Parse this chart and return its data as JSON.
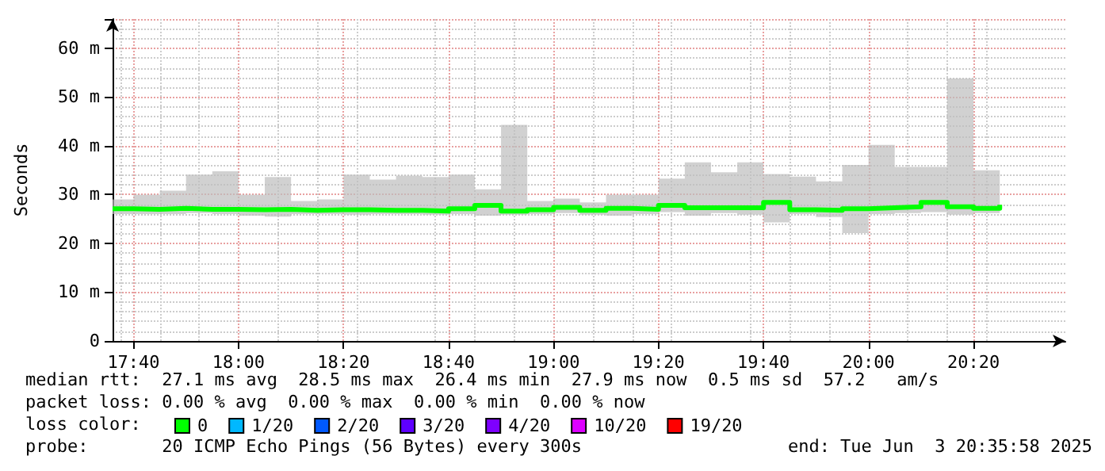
{
  "chart_data": {
    "type": "step",
    "ylabel": "Seconds",
    "x": [
      17.6,
      17.6667,
      17.75,
      17.8333,
      17.9167,
      18,
      18.0833,
      18.1667,
      18.25,
      18.3333,
      18.4167,
      18.5,
      18.5833,
      18.6667,
      18.75,
      18.8333,
      18.9167,
      19,
      19.0833,
      19.1667,
      19.25,
      19.3333,
      19.4167,
      19.5,
      19.5833,
      19.6667,
      19.75,
      19.8333,
      19.9167,
      20,
      20.0833,
      20.1667,
      20.25,
      20.3333,
      20.4167
    ],
    "series": [
      {
        "name": "0",
        "color": "#00ff00",
        "values": [
          27.1,
          27.0,
          27.2,
          27.0,
          27.0,
          26.9,
          27.0,
          26.8,
          26.9,
          26.9,
          26.8,
          26.8,
          26.6,
          27.1,
          27.8,
          26.6,
          26.9,
          27.4,
          26.8,
          27.2,
          27.0,
          27.8,
          27.3,
          27.3,
          27.3,
          28.4,
          26.9,
          26.8,
          27.1,
          27.3,
          27.5,
          28.4,
          27.5,
          27.2,
          27.9
        ],
        "lower": [
          26.0,
          26.0,
          26.0,
          26.2,
          26.0,
          25.7,
          25.5,
          26.0,
          26.0,
          25.9,
          26.0,
          26.0,
          25.9,
          26.0,
          25.7,
          25.9,
          26.0,
          26.2,
          25.9,
          25.7,
          26.0,
          26.4,
          25.7,
          26.2,
          25.9,
          24.3,
          26.0,
          25.4,
          22.1,
          26.0,
          26.2,
          26.4,
          25.9,
          26.2,
          26.0
        ],
        "upper": [
          29.0,
          30.0,
          30.8,
          34.1,
          34.8,
          30.0,
          33.6,
          28.7,
          29.0,
          34.1,
          33.1,
          33.9,
          33.6,
          34.1,
          31.1,
          44.3,
          28.7,
          29.2,
          28.4,
          30.0,
          30.0,
          33.3,
          36.6,
          34.6,
          36.6,
          34.2,
          33.7,
          32.7,
          36.1,
          40.2,
          35.7,
          35.7,
          53.8,
          35.0,
          36.4
        ]
      },
      {
        "name": "1/20",
        "color": "#00b8ff",
        "values": [
          null,
          null,
          null,
          null,
          null,
          null,
          null,
          null,
          null,
          null,
          null,
          null,
          null,
          null,
          null,
          null,
          null,
          null,
          null,
          null,
          null,
          null,
          null,
          null,
          null,
          null,
          null,
          null,
          null,
          null,
          null,
          null,
          null,
          null,
          null
        ]
      },
      {
        "name": "2/20",
        "color": "#0059ff",
        "values": [
          null,
          null,
          null,
          null,
          null,
          null,
          null,
          null,
          null,
          null,
          null,
          null,
          null,
          null,
          null,
          null,
          null,
          null,
          null,
          null,
          null,
          null,
          null,
          null,
          null,
          null,
          null,
          null,
          null,
          null,
          null,
          null,
          null,
          null,
          null
        ]
      },
      {
        "name": "3/20",
        "color": "#5e00ff",
        "values": [
          null,
          null,
          null,
          null,
          null,
          null,
          null,
          null,
          null,
          null,
          null,
          null,
          null,
          null,
          null,
          null,
          null,
          null,
          null,
          null,
          null,
          null,
          null,
          null,
          null,
          null,
          null,
          null,
          null,
          null,
          null,
          null,
          null,
          null,
          null
        ]
      },
      {
        "name": "4/20",
        "color": "#7e00ff",
        "values": [
          null,
          null,
          null,
          null,
          null,
          null,
          null,
          null,
          null,
          null,
          null,
          null,
          null,
          null,
          null,
          null,
          null,
          null,
          null,
          null,
          null,
          null,
          null,
          null,
          null,
          null,
          null,
          null,
          null,
          null,
          null,
          null,
          null,
          null,
          null
        ]
      },
      {
        "name": "10/20",
        "color": "#dd00ff",
        "values": [
          null,
          null,
          null,
          null,
          null,
          null,
          null,
          null,
          null,
          null,
          null,
          null,
          null,
          null,
          null,
          null,
          null,
          null,
          null,
          null,
          null,
          null,
          null,
          null,
          null,
          null,
          null,
          null,
          null,
          null,
          null,
          null,
          null,
          null,
          null
        ]
      },
      {
        "name": "19/20",
        "color": "#ff0000",
        "values": [
          null,
          null,
          null,
          null,
          null,
          null,
          null,
          null,
          null,
          null,
          null,
          null,
          null,
          null,
          null,
          null,
          null,
          null,
          null,
          null,
          null,
          null,
          null,
          null,
          null,
          null,
          null,
          null,
          null,
          null,
          null,
          null,
          null,
          null,
          null
        ]
      }
    ],
    "xlim": [
      17.6,
      20.625
    ],
    "xticks": [
      {
        "value": 17.6667,
        "label": "17:40"
      },
      {
        "value": 18,
        "label": "18:00"
      },
      {
        "value": 18.3333,
        "label": "18:20"
      },
      {
        "value": 18.6667,
        "label": "18:40"
      },
      {
        "value": 19,
        "label": "19:00"
      },
      {
        "value": 19.3333,
        "label": "19:20"
      },
      {
        "value": 19.6667,
        "label": "19:40"
      },
      {
        "value": 20,
        "label": "20:00"
      },
      {
        "value": 20.3333,
        "label": "20:20"
      }
    ],
    "ylim": [
      0,
      66
    ],
    "yticks": [
      0,
      {
        "value": 10,
        "label": "10 m"
      },
      {
        "value": 20,
        "label": "20 m"
      },
      {
        "value": 30,
        "label": "30 m"
      },
      {
        "value": 40,
        "label": "40 m"
      },
      {
        "value": 50,
        "label": "50 m"
      },
      {
        "value": 60,
        "label": "60 m"
      }
    ],
    "grid": true,
    "legend": "bottom",
    "marker": "none",
    "annotations": [
      "median rtt:  27.1 ms avg  28.5 ms max  26.4 ms min  27.9 ms now  0.5 ms sd  57.2   am/s",
      "packet loss: 0.00 % avg  0.00 % max  0.00 % min  0.00 % now",
      "loss color:",
      "probe:       20 ICMP Echo Pings (56 Bytes) every 300s",
      "end: Tue Jun  3 20:35:58 2025"
    ]
  }
}
